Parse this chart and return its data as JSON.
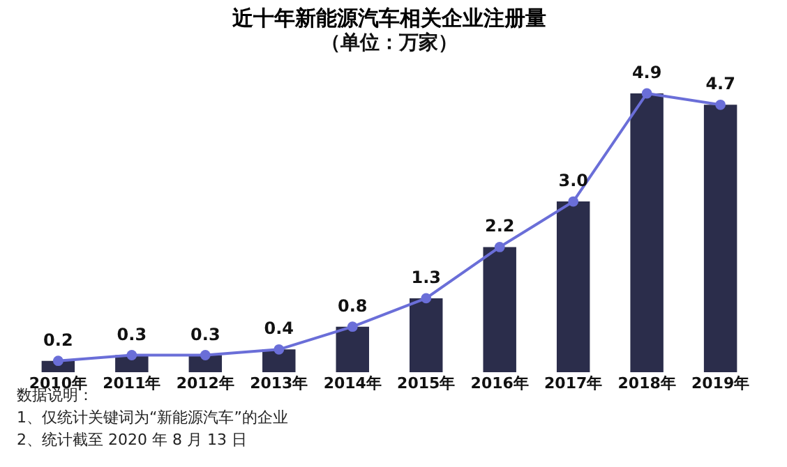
{
  "chart_data": {
    "type": "bar",
    "title": "近十年新能源汽车相关企业注册量",
    "subtitle": "（单位：万家）",
    "categories": [
      "2010年",
      "2011年",
      "2012年",
      "2013年",
      "2014年",
      "2015年",
      "2016年",
      "2017年",
      "2018年",
      "2019年"
    ],
    "series": [
      {
        "color": "#2b2d4b",
        "values": [
          0.2,
          0.3,
          0.3,
          0.4,
          0.8,
          1.3,
          2.2,
          3.0,
          4.9,
          4.7
        ]
      },
      {
        "type": "line",
        "color": "#6a6ed8",
        "marker": "circle",
        "values": [
          0.2,
          0.3,
          0.3,
          0.4,
          0.8,
          1.3,
          2.2,
          3.0,
          4.9,
          4.7
        ],
        "value_labels": [
          "0.2",
          "0.3",
          "0.3",
          "0.4",
          "0.8",
          "1.3",
          "2.2",
          "3.0",
          "4.9",
          "4.7"
        ]
      }
    ],
    "tick_labels": "x",
    "annotations": [
      "数据说明：",
      "1、仅统计关键词为“新能源汽车”的企业",
      "2、统计截至 2020 年 8 月 13 日"
    ]
  }
}
